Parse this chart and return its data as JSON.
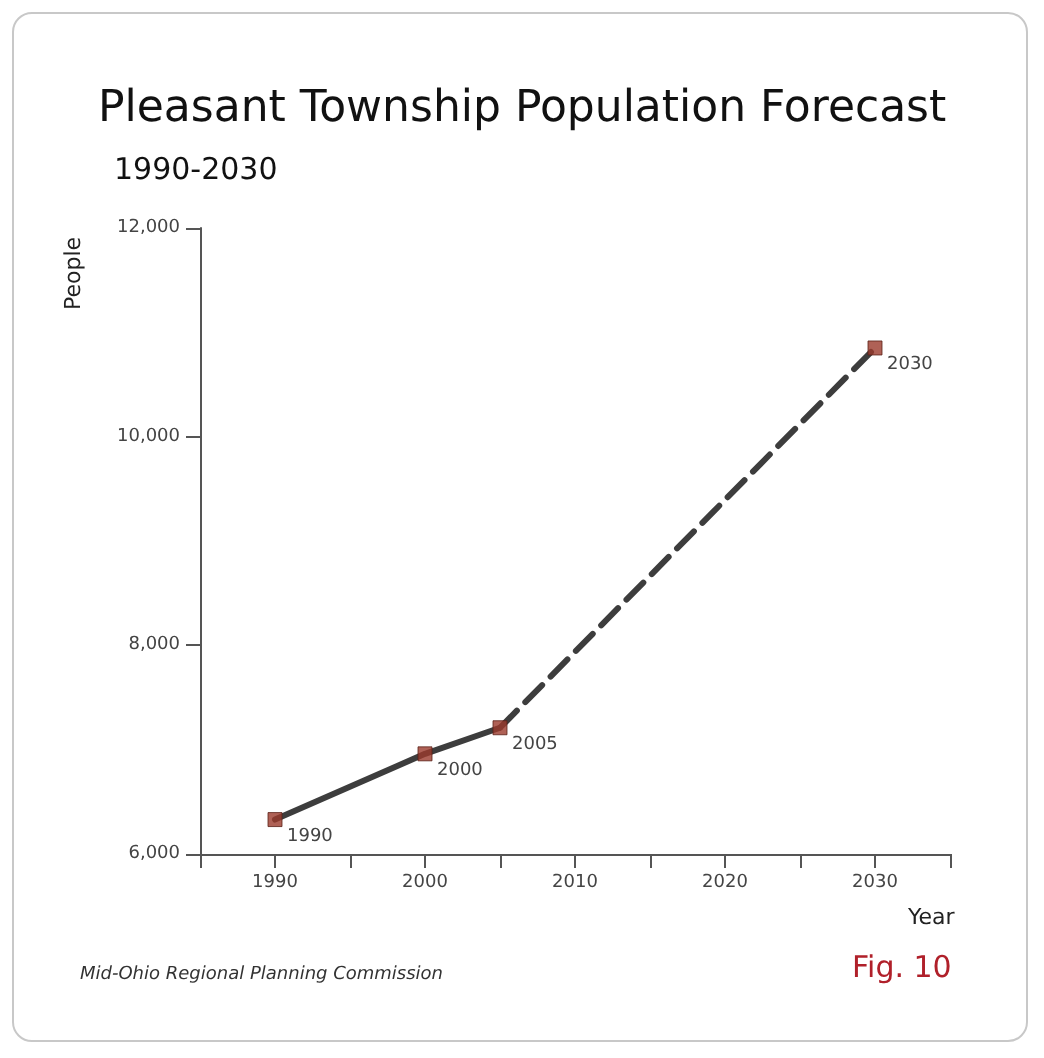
{
  "chart_data": {
    "type": "line",
    "title": "Pleasant Township Population Forecast",
    "subtitle": "1990-2030",
    "xlabel": "Year",
    "ylabel": "People",
    "series": [
      {
        "color": "#3d3d3d",
        "x": [
          1990,
          2000,
          2005
        ],
        "values": [
          6330,
          6960,
          7210
        ],
        "line_style": "solid",
        "marker": "none"
      },
      {
        "color": "#3d3d3d",
        "x": [
          2005,
          2030
        ],
        "values": [
          7210,
          10850
        ],
        "line_style": "dashed",
        "marker": "none"
      },
      {
        "type": "scatter",
        "color": "#9b3a2c",
        "x": [
          1990,
          2000,
          2005,
          2030
        ],
        "values": [
          6330,
          6960,
          7210,
          10850
        ],
        "marker": "square"
      }
    ],
    "xlim": [
      1985,
      2035
    ],
    "xticks": [
      {
        "value": 1985,
        "label": null
      },
      1990,
      {
        "value": 1995,
        "label": null
      },
      2000,
      {
        "value": 2005,
        "label": null
      },
      2010,
      {
        "value": 2015,
        "label": null
      },
      2020,
      {
        "value": 2025,
        "label": null
      },
      2030,
      {
        "value": 2035,
        "label": null
      }
    ],
    "ylim": [
      6000,
      12000
    ],
    "yticks": [
      {
        "value": 6000,
        "label": "6,000"
      },
      {
        "value": 8000,
        "label": "8,000"
      },
      {
        "value": 10000,
        "label": "10,000"
      },
      {
        "value": 12000,
        "label": "12,000"
      }
    ],
    "grid": false,
    "annotations": [
      {
        "text": "1990",
        "x": 1990,
        "y": 6330
      },
      {
        "text": "2000",
        "x": 2000,
        "y": 6960
      },
      {
        "text": "2005",
        "x": 2005,
        "y": 7210
      },
      {
        "text": "2030",
        "x": 2030,
        "y": 10850
      },
      "Mid-Ohio Regional Planning Commission",
      "Fig. 10"
    ]
  }
}
